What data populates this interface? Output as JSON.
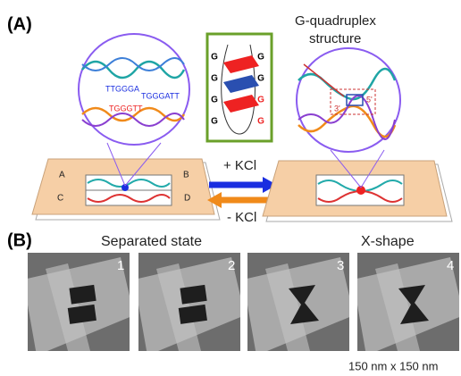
{
  "panel_a": {
    "label": "(A)",
    "quadruplex_label": [
      "G-quadruplex",
      "structure"
    ],
    "plus_kcl": "+ KCl",
    "minus_kcl": "- KCl",
    "plate_corners": [
      "A",
      "B",
      "C",
      "D"
    ],
    "sequences": [
      "TTGGGA",
      "TGGGATT",
      "TGGGTT"
    ],
    "quadruplex_g": [
      "G",
      "G",
      "G",
      "G",
      "G",
      "G",
      "G",
      "G"
    ],
    "ends": [
      "3'",
      "5'"
    ]
  },
  "panel_b": {
    "label": "(B)",
    "left_title": "Separated state",
    "right_title": "X-shape",
    "frames": [
      "1",
      "2",
      "3",
      "4"
    ],
    "scale": "150 nm x 150 nm"
  }
}
